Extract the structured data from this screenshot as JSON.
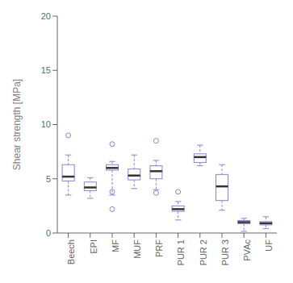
{
  "chart_data": {
    "type": "box",
    "categories": [
      "Beech",
      "EPI",
      "MF",
      "MUF",
      "PRF",
      "PUR 1",
      "PUR 2",
      "PUR 3",
      "PVAc",
      "UF"
    ],
    "stats": [
      {
        "whislo": 3.5,
        "q1": 4.8,
        "med": 5.2,
        "q3": 6.3,
        "whishi": 7.2,
        "fliers": [
          9.0
        ]
      },
      {
        "whislo": 3.2,
        "q1": 3.9,
        "med": 4.2,
        "q3": 4.7,
        "whishi": 5.1,
        "fliers": []
      },
      {
        "whislo": 3.5,
        "q1": 5.8,
        "med": 6.0,
        "q3": 6.3,
        "whishi": 6.6,
        "fliers": [
          8.2,
          3.8,
          2.2
        ]
      },
      {
        "whislo": 4.1,
        "q1": 4.9,
        "med": 5.3,
        "q3": 5.9,
        "whishi": 7.2,
        "fliers": []
      },
      {
        "whislo": 4.0,
        "q1": 5.0,
        "med": 5.7,
        "q3": 6.2,
        "whishi": 6.7,
        "fliers": [
          8.5,
          3.7
        ]
      },
      {
        "whislo": 1.2,
        "q1": 2.0,
        "med": 2.2,
        "q3": 2.5,
        "whishi": 2.9,
        "fliers": [
          3.8
        ]
      },
      {
        "whislo": 6.2,
        "q1": 6.5,
        "med": 7.0,
        "q3": 7.3,
        "whishi": 8.1,
        "fliers": []
      },
      {
        "whislo": 2.1,
        "q1": 3.0,
        "med": 4.3,
        "q3": 5.4,
        "whishi": 6.3,
        "fliers": []
      },
      {
        "whislo": 0.15,
        "q1": 0.85,
        "med": 1.0,
        "q3": 1.15,
        "whishi": 1.35,
        "fliers": []
      },
      {
        "whislo": 0.4,
        "q1": 0.75,
        "med": 0.9,
        "q3": 1.05,
        "whishi": 1.5,
        "fliers": []
      }
    ],
    "ylabel": "Shear strength [MPa]",
    "ylim": [
      0,
      20
    ],
    "yticks": [
      0,
      5,
      10,
      15,
      20
    ],
    "grid": false
  }
}
